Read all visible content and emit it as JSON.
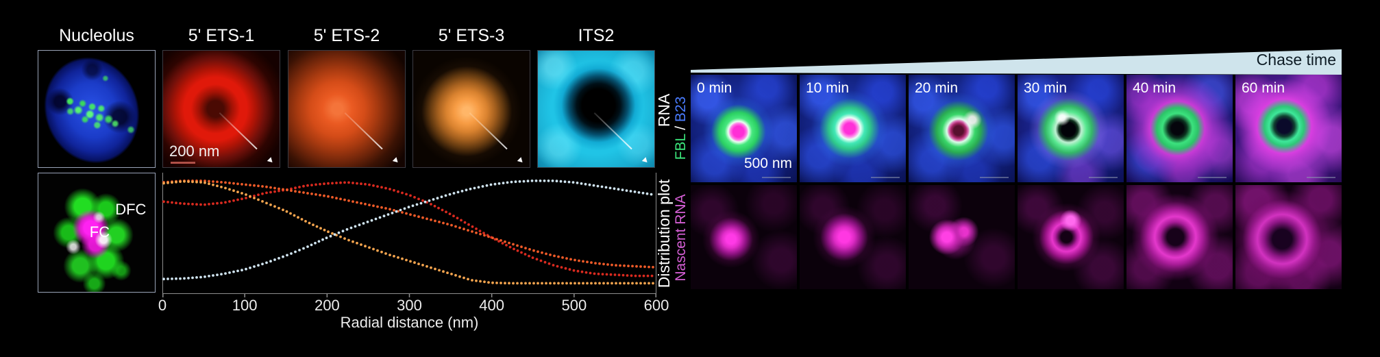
{
  "left_panel": {
    "column_labels": [
      "Nucleolus",
      "5' ETS-1",
      "5' ETS-2",
      "5' ETS-3",
      "ITS2"
    ],
    "row_labels": {
      "top": "RNA"
    },
    "scale_bar_label": "200 nm",
    "dfc_label": "DFC",
    "fc_label": "FC"
  },
  "chart_data": {
    "type": "line",
    "style": "dotted",
    "xlabel": "Radial distance (nm)",
    "ylabel": "Distribution plot",
    "xlim": [
      0,
      600
    ],
    "ylim": [
      0,
      1
    ],
    "xticks": [
      0,
      100,
      200,
      300,
      400,
      500,
      600
    ],
    "grid": false,
    "legend": "none",
    "x": [
      0,
      25,
      50,
      75,
      100,
      125,
      150,
      175,
      200,
      225,
      250,
      275,
      300,
      325,
      350,
      375,
      400,
      425,
      450,
      475,
      500,
      525,
      550,
      575,
      600
    ],
    "series": [
      {
        "name": "5' ETS-1",
        "color": "#d92a1f",
        "values": [
          0.78,
          0.76,
          0.75,
          0.77,
          0.81,
          0.86,
          0.89,
          0.93,
          0.95,
          0.96,
          0.94,
          0.9,
          0.84,
          0.76,
          0.66,
          0.55,
          0.44,
          0.34,
          0.25,
          0.18,
          0.13,
          0.1,
          0.09,
          0.08,
          0.08
        ]
      },
      {
        "name": "5' ETS-2",
        "color": "#ee5a28",
        "values": [
          0.96,
          0.975,
          0.975,
          0.96,
          0.94,
          0.92,
          0.89,
          0.86,
          0.83,
          0.79,
          0.75,
          0.71,
          0.66,
          0.61,
          0.56,
          0.5,
          0.44,
          0.38,
          0.32,
          0.27,
          0.23,
          0.2,
          0.18,
          0.17,
          0.16
        ]
      },
      {
        "name": "5' ETS-3",
        "color": "#f4a44e",
        "values": [
          0.95,
          0.97,
          0.96,
          0.91,
          0.85,
          0.77,
          0.69,
          0.59,
          0.5,
          0.42,
          0.35,
          0.28,
          0.22,
          0.16,
          0.1,
          0.04,
          0.015,
          0.01,
          0.01,
          0.01,
          0.01,
          0.01,
          0.01,
          0.01,
          0.01
        ]
      },
      {
        "name": "ITS2",
        "color": "#cfe3ef",
        "values": [
          0.05,
          0.055,
          0.07,
          0.1,
          0.14,
          0.2,
          0.27,
          0.35,
          0.44,
          0.52,
          0.59,
          0.66,
          0.73,
          0.79,
          0.85,
          0.9,
          0.94,
          0.965,
          0.975,
          0.975,
          0.96,
          0.93,
          0.9,
          0.87,
          0.84
        ]
      }
    ]
  },
  "right_panel": {
    "chase_label": "Chase time",
    "time_labels": [
      "0 min",
      "10 min",
      "20 min",
      "30 min",
      "40 min",
      "60 min"
    ],
    "row1_label_parts": {
      "fbl": "FBL",
      "sep": " / ",
      "b23": "B23"
    },
    "row2_label": "Nascent RNA",
    "scale_bar_label": "500 nm"
  },
  "colors": {
    "background": "#000000",
    "wedge": "#cfe4ec",
    "chase_text": "#0d1b24",
    "fbl_green": "#3ce87c",
    "b23_blue": "#4a7cff",
    "nascent_magenta": "#d45fd4",
    "axis_gray": "#8f8f8f"
  }
}
